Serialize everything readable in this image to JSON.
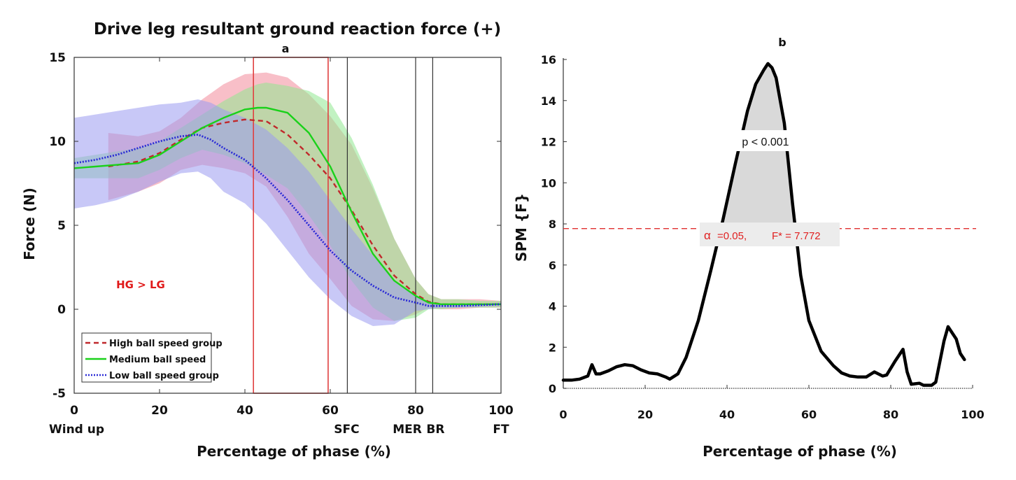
{
  "chart_data": [
    {
      "panel_label": "a",
      "type": "line",
      "title": "Drive leg resultant ground reaction force (+)",
      "xlabel": "Percentage of phase (%)",
      "ylabel": "Force (N)",
      "xlim": [
        0,
        100
      ],
      "ylim": [
        -5,
        15
      ],
      "x_ticks": [
        0,
        20,
        40,
        60,
        80,
        100
      ],
      "y_ticks": [
        -5,
        0,
        5,
        10,
        15
      ],
      "phase_markers": [
        {
          "label": "Wind up",
          "x": 0
        },
        {
          "label": "SFC",
          "x": 64
        },
        {
          "label": "MER",
          "x": 80
        },
        {
          "label": "BR",
          "x": 84
        },
        {
          "label": "FT",
          "x": 100
        }
      ],
      "significant_region": {
        "x_start": 42,
        "x_end": 59.5,
        "annotation": "HG > LG"
      },
      "legend_position": "bottom-left",
      "series": [
        {
          "name": "High ball speed group",
          "color": "#c0282b",
          "band_color": "#f28a9a",
          "style": "dashed",
          "x": [
            8,
            15,
            20,
            25,
            30,
            35,
            40,
            45,
            50,
            55,
            60,
            65,
            70,
            75,
            80,
            83,
            86,
            90,
            95,
            100
          ],
          "mean": [
            8.5,
            8.8,
            9.3,
            10.1,
            10.8,
            11.1,
            11.3,
            11.2,
            10.4,
            9.2,
            7.8,
            5.9,
            3.8,
            2.0,
            0.9,
            0.45,
            0.3,
            0.3,
            0.3,
            0.3
          ],
          "upper": [
            10.5,
            10.3,
            10.6,
            11.4,
            12.5,
            13.4,
            14.0,
            14.1,
            13.8,
            12.8,
            11.5,
            9.8,
            7.2,
            4.2,
            1.8,
            0.9,
            0.6,
            0.6,
            0.6,
            0.5
          ],
          "lower": [
            6.5,
            7.0,
            7.5,
            8.3,
            8.6,
            8.4,
            8.1,
            7.3,
            5.5,
            3.3,
            1.8,
            0.2,
            -0.6,
            -0.7,
            -0.3,
            0.1,
            0.0,
            0.0,
            0.1,
            0.1
          ]
        },
        {
          "name": "Medium ball speed",
          "color": "#1ad11a",
          "band_color": "#8fe88f",
          "style": "solid",
          "x": [
            0,
            5,
            10,
            15,
            20,
            25,
            30,
            35,
            40,
            43,
            45,
            50,
            55,
            60,
            65,
            70,
            75,
            80,
            83,
            86,
            90,
            95,
            100
          ],
          "mean": [
            8.4,
            8.5,
            8.6,
            8.7,
            9.2,
            10.0,
            10.8,
            11.4,
            11.9,
            12.0,
            12.0,
            11.7,
            10.5,
            8.5,
            5.8,
            3.3,
            1.7,
            0.8,
            0.4,
            0.3,
            0.3,
            0.3,
            0.3
          ],
          "upper": [
            9.0,
            9.2,
            9.4,
            9.6,
            10.0,
            10.8,
            11.6,
            12.4,
            13.1,
            13.4,
            13.5,
            13.3,
            13.0,
            12.3,
            10.2,
            7.4,
            4.2,
            1.8,
            0.9,
            0.6,
            0.6,
            0.5,
            0.5
          ],
          "lower": [
            7.8,
            7.8,
            7.8,
            7.8,
            8.3,
            9.0,
            9.5,
            9.2,
            8.7,
            8.3,
            8.0,
            7.2,
            5.6,
            3.8,
            1.7,
            0.1,
            -0.7,
            -0.5,
            0.0,
            0.0,
            0.1,
            0.1,
            0.1
          ]
        },
        {
          "name": "Low ball speed group",
          "color": "#2a2ad6",
          "band_color": "#9a9af0",
          "style": "dotted",
          "x": [
            0,
            5,
            10,
            15,
            20,
            25,
            29,
            32,
            35,
            40,
            45,
            50,
            55,
            60,
            65,
            70,
            75,
            80,
            83,
            86,
            90,
            95,
            100
          ],
          "mean": [
            8.7,
            8.9,
            9.2,
            9.6,
            10.0,
            10.3,
            10.4,
            10.1,
            9.6,
            8.9,
            7.8,
            6.5,
            5.0,
            3.5,
            2.3,
            1.4,
            0.7,
            0.4,
            0.2,
            0.2,
            0.2,
            0.25,
            0.3
          ],
          "upper": [
            11.4,
            11.6,
            11.8,
            12.0,
            12.2,
            12.3,
            12.5,
            12.3,
            11.9,
            11.4,
            10.7,
            9.6,
            8.2,
            6.5,
            4.8,
            3.2,
            1.7,
            0.8,
            0.4,
            0.3,
            0.3,
            0.3,
            0.4
          ],
          "lower": [
            6.0,
            6.2,
            6.5,
            7.0,
            7.6,
            8.1,
            8.2,
            7.8,
            7.0,
            6.3,
            5.1,
            3.5,
            1.9,
            0.6,
            -0.4,
            -1.0,
            -0.9,
            -0.1,
            0.0,
            0.1,
            0.1,
            0.15,
            0.2
          ]
        }
      ]
    },
    {
      "panel_label": "b",
      "type": "line",
      "title": "",
      "xlabel": "Percentage of phase (%)",
      "ylabel": "SPM {F}",
      "xlim": [
        0,
        100
      ],
      "ylim": [
        0,
        16
      ],
      "x_ticks": [
        0,
        20,
        40,
        60,
        80,
        100
      ],
      "y_ticks": [
        0,
        2,
        4,
        6,
        8,
        10,
        12,
        14,
        16
      ],
      "threshold": {
        "value": 7.772,
        "alpha": 0.05,
        "alpha_symbol": "α",
        "alpha_text": "=0.05,",
        "f_text": "F* = 7.772",
        "color": "#e03030"
      },
      "cluster_p_text": "p < 0.001",
      "series": [
        {
          "name": "",
          "color": "#000000",
          "x": [
            0,
            2,
            4,
            6,
            7,
            8,
            9,
            11,
            13,
            15,
            17,
            19,
            21,
            23,
            25,
            26,
            28,
            30,
            33,
            36,
            39,
            42,
            45,
            47,
            49,
            50,
            51,
            52,
            54,
            56,
            58,
            60,
            63,
            66,
            68,
            70,
            72,
            74,
            76,
            78,
            79,
            81,
            83,
            84,
            85,
            87,
            88,
            89,
            90,
            91,
            93,
            94,
            96,
            97,
            98
          ],
          "y": [
            0.4,
            0.4,
            0.45,
            0.6,
            1.15,
            0.7,
            0.7,
            0.85,
            1.05,
            1.15,
            1.1,
            0.9,
            0.75,
            0.7,
            0.55,
            0.45,
            0.7,
            1.5,
            3.3,
            5.7,
            8.2,
            10.9,
            13.5,
            14.8,
            15.5,
            15.8,
            15.6,
            15.1,
            12.9,
            9.0,
            5.5,
            3.3,
            1.8,
            1.1,
            0.75,
            0.6,
            0.55,
            0.55,
            0.8,
            0.6,
            0.65,
            1.3,
            1.9,
            0.8,
            0.2,
            0.25,
            0.15,
            0.15,
            0.15,
            0.3,
            2.3,
            3.0,
            2.4,
            1.7,
            1.4
          ]
        }
      ]
    }
  ]
}
